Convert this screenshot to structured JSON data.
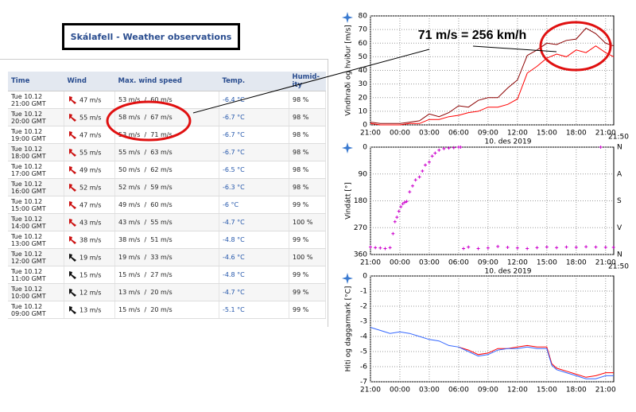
{
  "header": {
    "title": "Skálafell - Weather observations"
  },
  "table": {
    "columns": [
      "Time",
      "Wind",
      "Max. wind speed",
      "Temp.",
      "Humid-ity"
    ],
    "arrow_colors": [
      "#cc1111",
      "#cc1111",
      "#cc1111",
      "#cc1111",
      "#cc1111",
      "#cc1111",
      "#cc1111",
      "#cc1111",
      "#cc1111",
      "#111111",
      "#111111",
      "#111111",
      "#111111"
    ],
    "rows": [
      [
        [
          "Tue 10.12",
          "21:00 GMT"
        ],
        "47 m/s",
        "53 m/s  /  60 m/s",
        "-6.4 °C",
        "98 %"
      ],
      [
        [
          "Tue 10.12",
          "20:00 GMT"
        ],
        "55 m/s",
        "58 m/s  /  67 m/s",
        "-6.7 °C",
        "98 %"
      ],
      [
        [
          "Tue 10.12",
          "19:00 GMT"
        ],
        "47 m/s",
        "53 m/s  /  71 m/s",
        "-6.7 °C",
        "98 %"
      ],
      [
        [
          "Tue 10.12",
          "18:00 GMT"
        ],
        "55 m/s",
        "55 m/s  /  63 m/s",
        "-6.7 °C",
        "98 %"
      ],
      [
        [
          "Tue 10.12",
          "17:00 GMT"
        ],
        "49 m/s",
        "50 m/s  /  62 m/s",
        "-6.5 °C",
        "98 %"
      ],
      [
        [
          "Tue 10.12",
          "16:00 GMT"
        ],
        "52 m/s",
        "52 m/s  /  59 m/s",
        "-6.3 °C",
        "98 %"
      ],
      [
        [
          "Tue 10.12",
          "15:00 GMT"
        ],
        "47 m/s",
        "49 m/s  /  60 m/s",
        "-6 °C",
        "99 %"
      ],
      [
        [
          "Tue 10.12",
          "14:00 GMT"
        ],
        "43 m/s",
        "43 m/s  /  55 m/s",
        "-4.7 °C",
        "100 %"
      ],
      [
        [
          "Tue 10.12",
          "13:00 GMT"
        ],
        "38 m/s",
        "38 m/s  /  51 m/s",
        "-4.8 °C",
        "99 %"
      ],
      [
        [
          "Tue 10.12",
          "12:00 GMT"
        ],
        "19 m/s",
        "19 m/s  /  33 m/s",
        "-4.6 °C",
        "100 %"
      ],
      [
        [
          "Tue 10.12",
          "11:00 GMT"
        ],
        "15 m/s",
        "15 m/s  /  27 m/s",
        "-4.8 °C",
        "99 %"
      ],
      [
        [
          "Tue 10.12",
          "10:00 GMT"
        ],
        "12 m/s",
        "13 m/s  /  20 m/s",
        "-4.7 °C",
        "99 %"
      ],
      [
        [
          "Tue 10.12",
          "09:00 GMT"
        ],
        "13 m/s",
        "15 m/s  /  20 m/s",
        "-5.1 °C",
        "99 %"
      ]
    ]
  },
  "annotation": "71 m/s = 256 km/h",
  "charts": [
    {
      "type": "line",
      "ylabel": "Vindhraði og hviður [m/s]",
      "xlabel": "10. des 2019",
      "end_label": "21:50",
      "xlim": [
        0,
        24.83
      ],
      "ylim": [
        0,
        80
      ],
      "yticks": [
        0,
        10,
        20,
        30,
        40,
        50,
        60,
        70,
        80
      ],
      "grid": true,
      "xticks": [
        {
          "value": 0,
          "label": "21:00"
        },
        {
          "value": 3,
          "label": "00:00"
        },
        {
          "value": 6,
          "label": "03:00"
        },
        {
          "value": 9,
          "label": "06:00"
        },
        {
          "value": 12,
          "label": "09:00"
        },
        {
          "value": 15,
          "label": "12:00"
        },
        {
          "value": 18,
          "label": "15:00"
        },
        {
          "value": 21,
          "label": "18:00"
        },
        {
          "value": 24,
          "label": "21:00"
        }
      ],
      "x": [
        0,
        1,
        2,
        3,
        4,
        5,
        6,
        7,
        8,
        9,
        10,
        11,
        12,
        13,
        14,
        15,
        16,
        17,
        18,
        19,
        20,
        21,
        22,
        23,
        24,
        24.83
      ],
      "series": [
        {
          "color": "#8b0000",
          "values": [
            2,
            1,
            1,
            1,
            2,
            3,
            8,
            6,
            9,
            14,
            13,
            18,
            20,
            20,
            27,
            33,
            51,
            55,
            60,
            59,
            62,
            63,
            71,
            67,
            60,
            58
          ]
        },
        {
          "color": "#ff0000",
          "values": [
            1,
            0,
            0,
            0,
            1,
            1,
            4,
            4,
            6,
            7,
            9,
            10,
            13,
            13,
            15,
            19,
            38,
            43,
            49,
            52,
            50,
            55,
            53,
            58,
            53,
            50
          ]
        }
      ]
    },
    {
      "type": "scatter",
      "ylabel": "Vindátt [°]",
      "xlabel": "10. des 2019",
      "end_label": "21:50",
      "xlim": [
        0,
        24.83
      ],
      "ylim": [
        0,
        360
      ],
      "y_inverted": true,
      "yticks": [
        0,
        90,
        180,
        270,
        360
      ],
      "grid": true,
      "y2lim": [
        0,
        360
      ],
      "y2ticks": [
        {
          "value": 0,
          "label": "N"
        },
        {
          "value": 90,
          "label": "A"
        },
        {
          "value": 180,
          "label": "S"
        },
        {
          "value": 270,
          "label": "V"
        },
        {
          "value": 360,
          "label": "N"
        }
      ],
      "xticks": [
        {
          "value": 0,
          "label": "21:00"
        },
        {
          "value": 3,
          "label": "00:00"
        },
        {
          "value": 6,
          "label": "03:00"
        },
        {
          "value": 9,
          "label": "06:00"
        },
        {
          "value": 12,
          "label": "09:00"
        },
        {
          "value": 15,
          "label": "12:00"
        },
        {
          "value": 18,
          "label": "15:00"
        },
        {
          "value": 21,
          "label": "18:00"
        },
        {
          "value": 24,
          "label": "21:00"
        }
      ],
      "series": [
        {
          "color": "#cc00cc",
          "x": [
            0,
            0.5,
            1,
            1.5,
            2,
            2.3,
            2.5,
            2.7,
            2.9,
            3.1,
            3.3,
            3.5,
            3.7,
            4,
            4.3,
            4.6,
            5,
            5.3,
            5.6,
            6,
            6.3,
            6.6,
            7,
            7.5,
            8,
            8.5,
            9,
            9.2,
            9.5,
            10,
            11,
            12,
            13,
            14,
            15,
            16,
            17,
            18,
            19,
            20,
            21,
            22,
            23,
            23.5,
            24,
            24.8
          ],
          "values": [
            335,
            337,
            338,
            340,
            337,
            290,
            250,
            235,
            215,
            200,
            190,
            185,
            182,
            150,
            130,
            110,
            100,
            80,
            60,
            50,
            30,
            20,
            10,
            5,
            3,
            2,
            0,
            0,
            340,
            335,
            340,
            338,
            333,
            336,
            338,
            340,
            337,
            335,
            337,
            335,
            336,
            334,
            335,
            0,
            336,
            336
          ]
        }
      ]
    },
    {
      "type": "line",
      "ylabel": "Hiti og daggarmark [°C]",
      "xlim": [
        0,
        24.83
      ],
      "ylim": [
        -7,
        0
      ],
      "yticks": [
        0,
        -1,
        -2,
        -3,
        -4,
        -5,
        -6,
        -7
      ],
      "grid": true,
      "xticks": [
        {
          "value": 0,
          "label": "21:00"
        },
        {
          "value": 3,
          "label": "00:00"
        },
        {
          "value": 6,
          "label": "03:00"
        },
        {
          "value": 9,
          "label": "06:00"
        },
        {
          "value": 12,
          "label": "09:00"
        },
        {
          "value": 15,
          "label": "12:00"
        },
        {
          "value": 18,
          "label": "15:00"
        },
        {
          "value": 21,
          "label": "18:00"
        },
        {
          "value": 24,
          "label": "21:00"
        }
      ],
      "x": [
        0,
        1,
        2,
        3,
        4,
        5,
        6,
        7,
        8,
        9,
        10,
        11,
        12,
        13,
        14,
        15,
        16,
        17,
        18,
        18.5,
        19,
        20,
        21,
        22,
        23,
        24,
        24.83
      ],
      "series": [
        {
          "color": "#ff0000",
          "values": [
            null,
            null,
            null,
            null,
            null,
            null,
            null,
            null,
            null,
            -4.7,
            -4.9,
            -5.2,
            -5.1,
            -4.8,
            -4.8,
            -4.7,
            -4.6,
            -4.7,
            -4.7,
            -5.8,
            -6.1,
            -6.3,
            -6.5,
            -6.7,
            -6.6,
            -6.4,
            -6.4
          ]
        },
        {
          "color": "#3366ff",
          "values": [
            -3.4,
            -3.6,
            -3.8,
            -3.7,
            -3.8,
            -4.0,
            -4.2,
            -4.3,
            -4.6,
            -4.7,
            -5.0,
            -5.3,
            -5.2,
            -4.9,
            -4.8,
            -4.8,
            -4.7,
            -4.8,
            -4.8,
            -5.9,
            -6.2,
            -6.4,
            -6.6,
            -6.8,
            -6.8,
            -6.6,
            -6.6
          ]
        }
      ]
    }
  ]
}
